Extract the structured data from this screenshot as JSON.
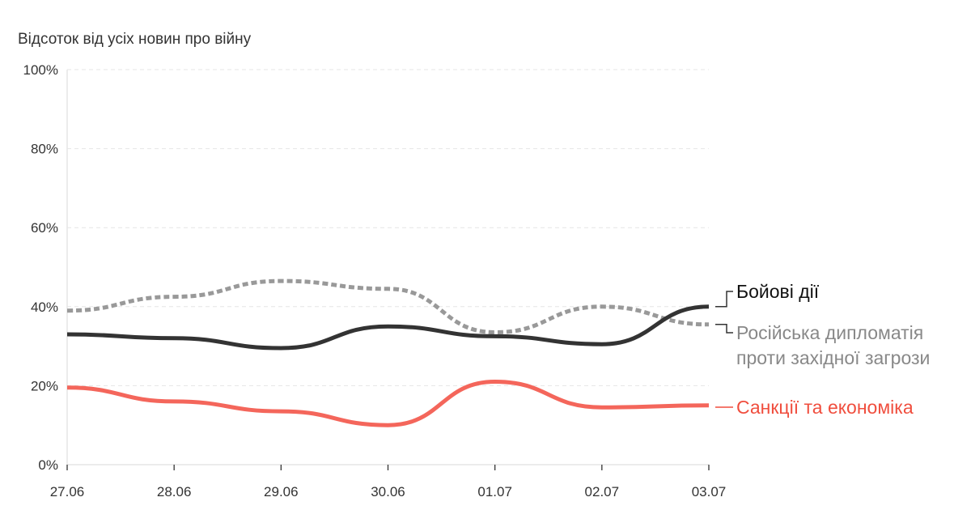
{
  "chart_data": {
    "type": "line",
    "ylabel": "Відсоток від усіх новин про війну",
    "x": [
      "27.06",
      "28.06",
      "29.06",
      "30.06",
      "01.07",
      "02.07",
      "03.07"
    ],
    "yticks": [
      "0%",
      "20%",
      "40%",
      "60%",
      "80%",
      "100%"
    ],
    "ylim": [
      0,
      100
    ],
    "grid": true,
    "legend": "direct labels at right end of lines",
    "series": [
      {
        "name": "Бойові дії",
        "label_lines": [
          "Бойові дії"
        ],
        "values": [
          33,
          32,
          29.5,
          35,
          32.5,
          30.5,
          40
        ],
        "color": "#333333",
        "dashed": false
      },
      {
        "name": "Російська дипломатія проти західної загрози",
        "label_lines": [
          "Російська дипломатія",
          "проти західної загрози"
        ],
        "values": [
          39,
          42.5,
          46.5,
          44.5,
          33.5,
          40,
          35.5
        ],
        "color": "#999999",
        "dashed": true
      },
      {
        "name": "Санкції та економіка",
        "label_lines": [
          "Санкції та економіка"
        ],
        "values": [
          19.5,
          16,
          13.5,
          10,
          21,
          14.5,
          15
        ],
        "color": "#f4665b",
        "dashed": false
      }
    ],
    "label_colors": [
      "#111111",
      "#888888",
      "#f04e3e"
    ]
  }
}
